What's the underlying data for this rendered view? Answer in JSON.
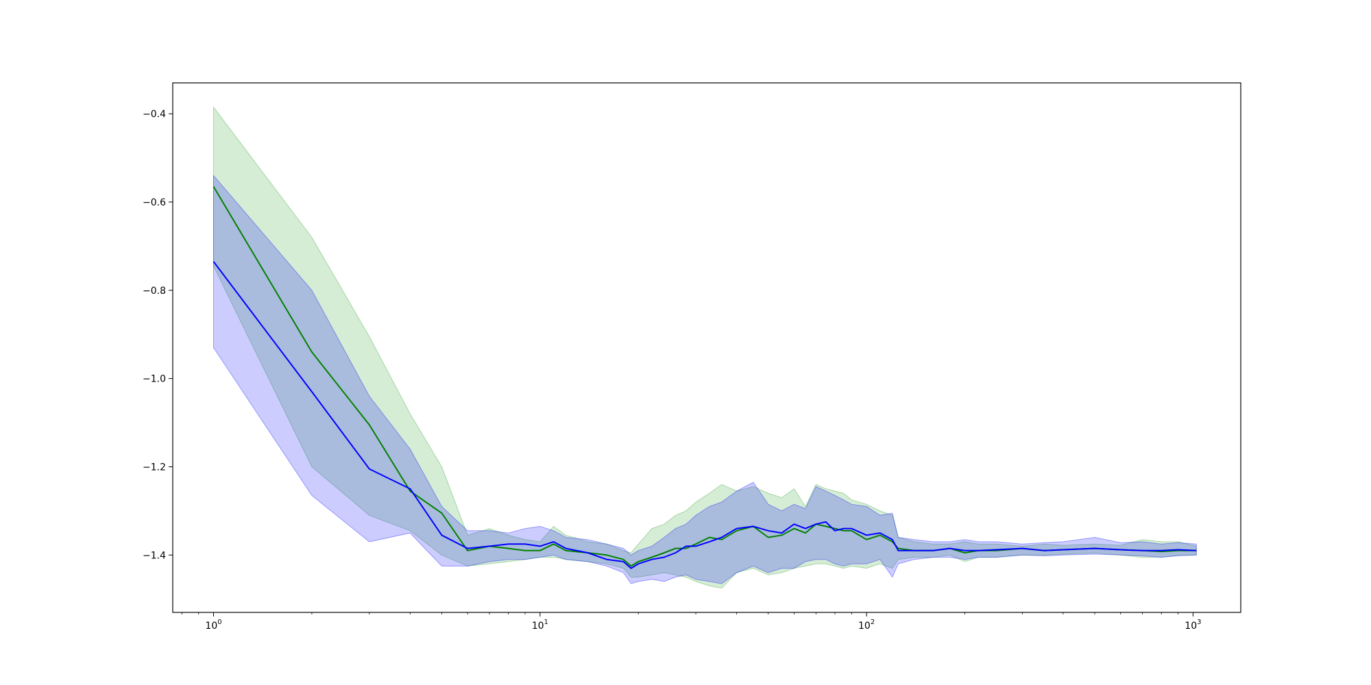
{
  "chart_data": {
    "type": "line",
    "title": "",
    "xlabel": "",
    "ylabel": "",
    "xscale": "log",
    "xlim": [
      0.75,
      1400
    ],
    "ylim": [
      -1.53,
      -0.33
    ],
    "grid": false,
    "x_ticks": [
      {
        "base": "10",
        "exp": "0",
        "value": 1
      },
      {
        "base": "10",
        "exp": "1",
        "value": 10
      },
      {
        "base": "10",
        "exp": "2",
        "value": 100
      },
      {
        "base": "10",
        "exp": "3",
        "value": 1000
      }
    ],
    "y_ticks": [
      {
        "label": "−0.4",
        "value": -0.4
      },
      {
        "label": "−0.6",
        "value": -0.6
      },
      {
        "label": "−0.8",
        "value": -0.8
      },
      {
        "label": "−1.0",
        "value": -1.0
      },
      {
        "label": "−1.2",
        "value": -1.2
      },
      {
        "label": "−1.4",
        "value": -1.4
      }
    ],
    "x": [
      1,
      2,
      3,
      4,
      5,
      6,
      7,
      8,
      9,
      10,
      11,
      12,
      14,
      16,
      18,
      19,
      20,
      22,
      24,
      26,
      28,
      30,
      33,
      36,
      40,
      45,
      50,
      55,
      60,
      65,
      70,
      75,
      80,
      85,
      90,
      100,
      110,
      120,
      125,
      140,
      160,
      180,
      200,
      220,
      250,
      300,
      350,
      400,
      500,
      600,
      700,
      800,
      900,
      1024
    ],
    "series": [
      {
        "color": "#008000",
        "band_color": "#2ca02c",
        "mean": [
          -0.565,
          -0.94,
          -1.105,
          -1.255,
          -1.305,
          -1.39,
          -1.38,
          -1.385,
          -1.39,
          -1.39,
          -1.375,
          -1.39,
          -1.395,
          -1.4,
          -1.41,
          -1.425,
          -1.415,
          -1.405,
          -1.395,
          -1.385,
          -1.385,
          -1.375,
          -1.36,
          -1.365,
          -1.345,
          -1.335,
          -1.36,
          -1.355,
          -1.34,
          -1.35,
          -1.33,
          -1.335,
          -1.34,
          -1.345,
          -1.345,
          -1.365,
          -1.355,
          -1.37,
          -1.385,
          -1.39,
          -1.39,
          -1.385,
          -1.395,
          -1.39,
          -1.39,
          -1.385,
          -1.39,
          -1.388,
          -1.385,
          -1.388,
          -1.39,
          -1.392,
          -1.39,
          -1.39
        ],
        "upper": [
          -0.385,
          -0.68,
          -0.905,
          -1.08,
          -1.2,
          -1.355,
          -1.34,
          -1.355,
          -1.365,
          -1.37,
          -1.335,
          -1.355,
          -1.37,
          -1.375,
          -1.39,
          -1.395,
          -1.375,
          -1.34,
          -1.33,
          -1.31,
          -1.3,
          -1.28,
          -1.26,
          -1.24,
          -1.255,
          -1.245,
          -1.26,
          -1.27,
          -1.25,
          -1.29,
          -1.24,
          -1.25,
          -1.255,
          -1.26,
          -1.275,
          -1.285,
          -1.3,
          -1.31,
          -1.36,
          -1.37,
          -1.375,
          -1.375,
          -1.37,
          -1.375,
          -1.375,
          -1.38,
          -1.375,
          -1.378,
          -1.375,
          -1.378,
          -1.365,
          -1.37,
          -1.37,
          -1.38
        ],
        "lower": [
          -0.745,
          -1.2,
          -1.31,
          -1.345,
          -1.4,
          -1.425,
          -1.42,
          -1.415,
          -1.41,
          -1.405,
          -1.405,
          -1.41,
          -1.415,
          -1.42,
          -1.43,
          -1.45,
          -1.45,
          -1.445,
          -1.44,
          -1.445,
          -1.45,
          -1.46,
          -1.47,
          -1.475,
          -1.44,
          -1.43,
          -1.445,
          -1.44,
          -1.43,
          -1.425,
          -1.42,
          -1.42,
          -1.425,
          -1.43,
          -1.425,
          -1.43,
          -1.42,
          -1.43,
          -1.41,
          -1.405,
          -1.405,
          -1.4,
          -1.415,
          -1.405,
          -1.405,
          -1.4,
          -1.4,
          -1.398,
          -1.395,
          -1.4,
          -1.405,
          -1.405,
          -1.4,
          -1.4
        ]
      },
      {
        "color": "#0000ff",
        "band_color": "#0000ff",
        "mean": [
          -0.735,
          -1.03,
          -1.205,
          -1.25,
          -1.355,
          -1.385,
          -1.38,
          -1.375,
          -1.375,
          -1.38,
          -1.37,
          -1.385,
          -1.395,
          -1.41,
          -1.415,
          -1.43,
          -1.42,
          -1.41,
          -1.405,
          -1.395,
          -1.38,
          -1.38,
          -1.37,
          -1.36,
          -1.34,
          -1.335,
          -1.345,
          -1.35,
          -1.33,
          -1.34,
          -1.33,
          -1.325,
          -1.345,
          -1.34,
          -1.34,
          -1.355,
          -1.35,
          -1.365,
          -1.39,
          -1.39,
          -1.39,
          -1.385,
          -1.39,
          -1.39,
          -1.388,
          -1.385,
          -1.39,
          -1.388,
          -1.385,
          -1.388,
          -1.39,
          -1.39,
          -1.388,
          -1.39
        ],
        "upper": [
          -0.54,
          -0.8,
          -1.04,
          -1.16,
          -1.29,
          -1.345,
          -1.345,
          -1.35,
          -1.34,
          -1.335,
          -1.345,
          -1.36,
          -1.365,
          -1.375,
          -1.385,
          -1.4,
          -1.39,
          -1.38,
          -1.36,
          -1.34,
          -1.33,
          -1.31,
          -1.29,
          -1.28,
          -1.255,
          -1.235,
          -1.285,
          -1.3,
          -1.285,
          -1.295,
          -1.245,
          -1.255,
          -1.265,
          -1.275,
          -1.285,
          -1.29,
          -1.31,
          -1.305,
          -1.36,
          -1.365,
          -1.37,
          -1.37,
          -1.365,
          -1.37,
          -1.37,
          -1.375,
          -1.372,
          -1.37,
          -1.36,
          -1.372,
          -1.37,
          -1.375,
          -1.372,
          -1.375
        ],
        "lower": [
          -0.93,
          -1.265,
          -1.37,
          -1.35,
          -1.425,
          -1.425,
          -1.415,
          -1.41,
          -1.41,
          -1.405,
          -1.4,
          -1.41,
          -1.415,
          -1.425,
          -1.44,
          -1.465,
          -1.46,
          -1.455,
          -1.46,
          -1.45,
          -1.445,
          -1.455,
          -1.46,
          -1.465,
          -1.44,
          -1.425,
          -1.44,
          -1.43,
          -1.43,
          -1.415,
          -1.41,
          -1.41,
          -1.42,
          -1.425,
          -1.42,
          -1.42,
          -1.41,
          -1.45,
          -1.42,
          -1.41,
          -1.405,
          -1.405,
          -1.41,
          -1.405,
          -1.405,
          -1.4,
          -1.402,
          -1.4,
          -1.398,
          -1.4,
          -1.402,
          -1.405,
          -1.402,
          -1.4
        ]
      }
    ]
  }
}
